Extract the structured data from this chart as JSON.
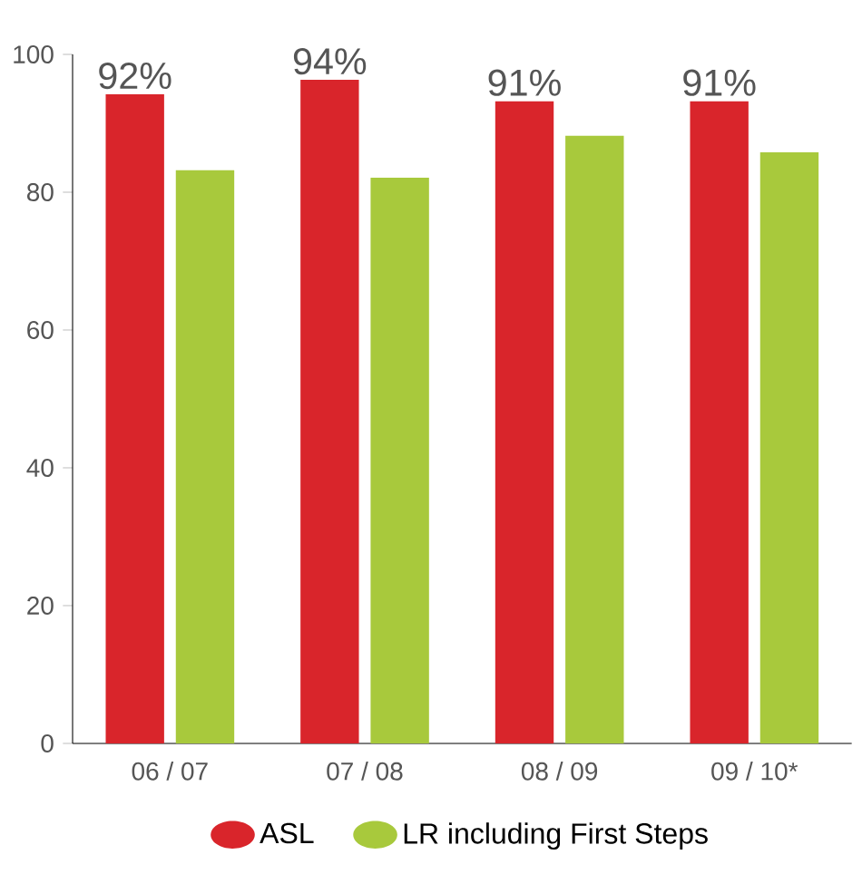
{
  "chart_data": {
    "type": "bar",
    "categories": [
      "06 / 07",
      "07 / 08",
      "08 / 09",
      "09 / 10*"
    ],
    "series": [
      {
        "name": "ASL",
        "color": "#d9252b",
        "values": [
          94.2,
          96.3,
          93.2,
          93.2
        ]
      },
      {
        "name": "LR including First Steps",
        "color": "#a8c93c",
        "values": [
          83.2,
          82.1,
          88.2,
          85.8
        ]
      }
    ],
    "ylim": [
      0,
      100
    ],
    "yticks": [
      0,
      20,
      40,
      60,
      80,
      100
    ],
    "grid": false,
    "legend": "bottom",
    "annotations": [
      {
        "text": "92%",
        "x": "06 / 07",
        "y": 94.2
      },
      {
        "text": "94%",
        "x": "07 / 08",
        "y": 96.3
      },
      {
        "text": "91%",
        "x": "08 / 09",
        "y": 93.2
      },
      {
        "text": "91%",
        "x": "09 / 10*",
        "y": 93.2
      }
    ]
  }
}
